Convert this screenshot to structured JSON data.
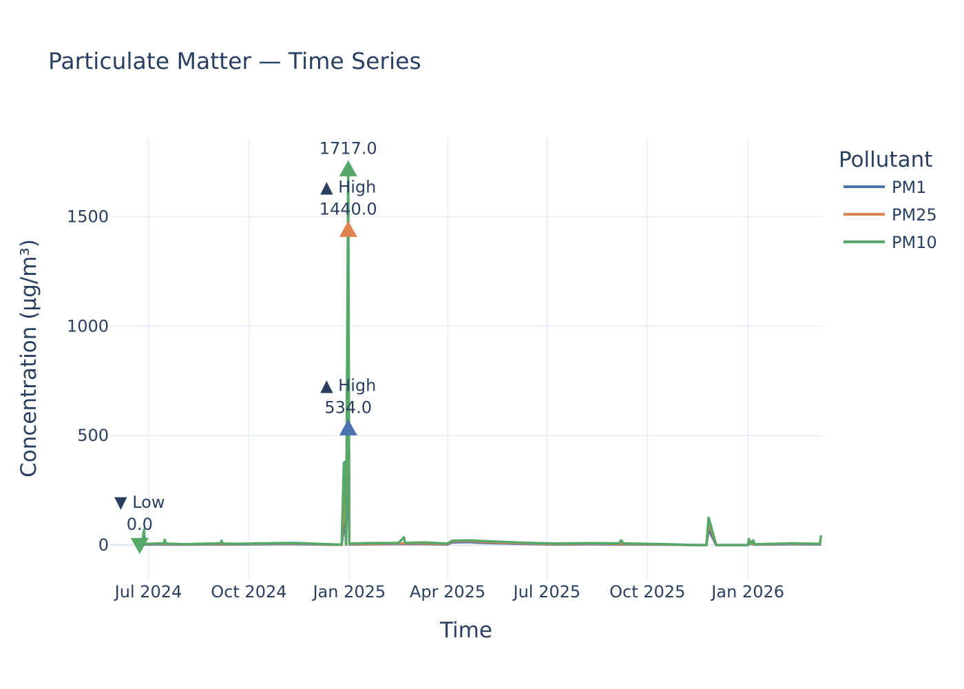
{
  "chart_data": {
    "type": "line",
    "title": "Particulate Matter — Time Series",
    "xlabel": "Time",
    "ylabel": "Concentration (µg/m³)",
    "x_ticks": [
      "Jul 2024",
      "Oct 2024",
      "Jan 2025",
      "Apr 2025",
      "Jul 2025",
      "Oct 2025",
      "Jan 2026"
    ],
    "x_tick_dates": [
      "2024-07-01",
      "2024-10-01",
      "2025-01-01",
      "2025-04-01",
      "2025-07-01",
      "2025-10-01",
      "2026-01-01"
    ],
    "xlim": [
      "2024-05-27",
      "2026-03-10"
    ],
    "y_ticks": [
      0,
      500,
      1000,
      1500
    ],
    "ylim": [
      -160,
      1860
    ],
    "grid": true,
    "legend_title": "Pollutant",
    "legend_position": "right",
    "series": [
      {
        "name": "PM1",
        "color": "#4c72b0",
        "points": [
          [
            "2024-06-23",
            0
          ],
          [
            "2024-06-25",
            2
          ],
          [
            "2024-07-01",
            3
          ],
          [
            "2024-07-15",
            3
          ],
          [
            "2024-08-05",
            2
          ],
          [
            "2024-08-15",
            3
          ],
          [
            "2024-09-20",
            3
          ],
          [
            "2024-11-10",
            5
          ],
          [
            "2024-12-25",
            1
          ],
          [
            "2024-12-28",
            120
          ],
          [
            "2024-12-29",
            2
          ],
          [
            "2024-12-31",
            534
          ],
          [
            "2025-01-01",
            3
          ],
          [
            "2025-01-20",
            4
          ],
          [
            "2025-02-15",
            5
          ],
          [
            "2025-03-10",
            5
          ],
          [
            "2025-04-01",
            3
          ],
          [
            "2025-04-05",
            12
          ],
          [
            "2025-04-20",
            14
          ],
          [
            "2025-05-05",
            10
          ],
          [
            "2025-06-15",
            5
          ],
          [
            "2025-07-10",
            3
          ],
          [
            "2025-08-10",
            4
          ],
          [
            "2025-09-15",
            3
          ],
          [
            "2025-10-20",
            2
          ],
          [
            "2025-11-15",
            0
          ],
          [
            "2025-11-24",
            0
          ],
          [
            "2025-11-26",
            70
          ],
          [
            "2025-12-03",
            0
          ],
          [
            "2026-01-01",
            0
          ],
          [
            "2026-01-03",
            10
          ],
          [
            "2026-01-06",
            2
          ],
          [
            "2026-02-10",
            4
          ],
          [
            "2026-03-09",
            3
          ]
        ]
      },
      {
        "name": "PM25",
        "color": "#dd8452",
        "points": [
          [
            "2024-06-23",
            0
          ],
          [
            "2024-06-25",
            3
          ],
          [
            "2024-07-01",
            5
          ],
          [
            "2024-07-15",
            6
          ],
          [
            "2024-08-05",
            3
          ],
          [
            "2024-08-15",
            5
          ],
          [
            "2024-09-20",
            5
          ],
          [
            "2024-11-10",
            8
          ],
          [
            "2024-12-25",
            1
          ],
          [
            "2024-12-28",
            250
          ],
          [
            "2024-12-29",
            3
          ],
          [
            "2024-12-31",
            1440
          ],
          [
            "2025-01-01",
            5
          ],
          [
            "2025-01-20",
            6
          ],
          [
            "2025-02-15",
            7
          ],
          [
            "2025-03-10",
            8
          ],
          [
            "2025-04-01",
            5
          ],
          [
            "2025-04-05",
            17
          ],
          [
            "2025-04-20",
            19
          ],
          [
            "2025-05-05",
            14
          ],
          [
            "2025-06-15",
            7
          ],
          [
            "2025-07-10",
            5
          ],
          [
            "2025-08-10",
            7
          ],
          [
            "2025-09-15",
            5
          ],
          [
            "2025-10-20",
            3
          ],
          [
            "2025-11-15",
            0
          ],
          [
            "2025-11-24",
            0
          ],
          [
            "2025-11-26",
            100
          ],
          [
            "2025-12-03",
            0
          ],
          [
            "2026-01-01",
            0
          ],
          [
            "2026-01-03",
            18
          ],
          [
            "2026-01-06",
            3
          ],
          [
            "2026-02-10",
            6
          ],
          [
            "2026-03-09",
            5
          ]
        ]
      },
      {
        "name": "PM10",
        "color": "#55a868",
        "points": [
          [
            "2024-06-23",
            0
          ],
          [
            "2024-06-25",
            4
          ],
          [
            "2024-06-27",
            70
          ],
          [
            "2024-06-28",
            5
          ],
          [
            "2024-07-01",
            6
          ],
          [
            "2024-07-15",
            8
          ],
          [
            "2024-07-16",
            25
          ],
          [
            "2024-07-17",
            7
          ],
          [
            "2024-08-05",
            4
          ],
          [
            "2024-08-15",
            6
          ],
          [
            "2024-09-05",
            8
          ],
          [
            "2024-09-06",
            20
          ],
          [
            "2024-09-07",
            7
          ],
          [
            "2024-09-20",
            6
          ],
          [
            "2024-11-10",
            10
          ],
          [
            "2024-12-25",
            2
          ],
          [
            "2024-12-27",
            375
          ],
          [
            "2024-12-28",
            380
          ],
          [
            "2024-12-29",
            5
          ],
          [
            "2024-12-31",
            1717
          ],
          [
            "2025-01-01",
            7
          ],
          [
            "2025-01-20",
            9
          ],
          [
            "2025-02-15",
            10
          ],
          [
            "2025-02-20",
            35
          ],
          [
            "2025-02-21",
            10
          ],
          [
            "2025-03-10",
            12
          ],
          [
            "2025-04-01",
            7
          ],
          [
            "2025-04-05",
            20
          ],
          [
            "2025-04-20",
            22
          ],
          [
            "2025-05-05",
            18
          ],
          [
            "2025-06-15",
            10
          ],
          [
            "2025-07-10",
            7
          ],
          [
            "2025-08-10",
            9
          ],
          [
            "2025-09-05",
            8
          ],
          [
            "2025-09-07",
            22
          ],
          [
            "2025-09-09",
            8
          ],
          [
            "2025-09-15",
            7
          ],
          [
            "2025-10-20",
            4
          ],
          [
            "2025-11-15",
            0
          ],
          [
            "2025-11-24",
            0
          ],
          [
            "2025-11-26",
            125
          ],
          [
            "2025-12-03",
            0
          ],
          [
            "2026-01-01",
            0
          ],
          [
            "2026-01-02",
            28
          ],
          [
            "2026-01-03",
            5
          ],
          [
            "2026-01-06",
            22
          ],
          [
            "2026-01-07",
            4
          ],
          [
            "2026-02-10",
            8
          ],
          [
            "2026-03-08",
            6
          ],
          [
            "2026-03-09",
            45
          ]
        ]
      }
    ],
    "annotations": [
      {
        "series": "PM10",
        "x": "2024-12-31",
        "y": 1717,
        "kind": "high",
        "marker": "triangle-up",
        "lines": [
          "1717.0"
        ]
      },
      {
        "series": "PM25",
        "x": "2024-12-31",
        "y": 1440,
        "kind": "high",
        "marker": "triangle-up",
        "lines": [
          "▲ High",
          "1440.0"
        ]
      },
      {
        "series": "PM1",
        "x": "2024-12-31",
        "y": 534,
        "kind": "high",
        "marker": "triangle-up",
        "lines": [
          "▲ High",
          "534.0"
        ]
      },
      {
        "series": "PM10",
        "x": "2024-06-23",
        "y": 0,
        "kind": "low",
        "marker": "triangle-down",
        "lines": [
          "▼ Low",
          "0.0"
        ]
      }
    ]
  }
}
